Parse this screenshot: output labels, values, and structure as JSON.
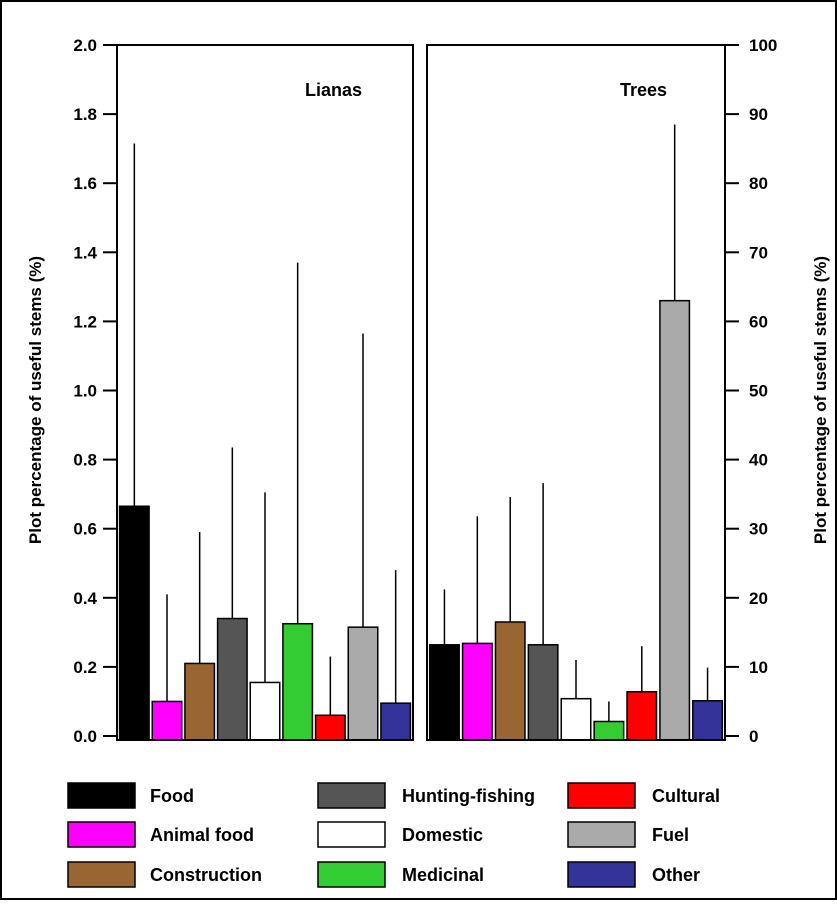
{
  "chart_data": {
    "type": "bar",
    "categories": [
      "Food",
      "Animal food",
      "Construction",
      "Hunting-fishing",
      "Domestic",
      "Medicinal",
      "Cultural",
      "Fuel",
      "Other"
    ],
    "colors": [
      "#000000",
      "#ff00ff",
      "#996633",
      "#555555",
      "#ffffff",
      "#33cc33",
      "#ff0000",
      "#aaaaaa",
      "#333399"
    ],
    "panels": [
      {
        "title": "Lianas",
        "axis": "left",
        "values": [
          0.665,
          0.1,
          0.21,
          0.34,
          0.155,
          0.325,
          0.06,
          0.315,
          0.095
        ],
        "error_upper": [
          1.715,
          0.41,
          0.59,
          0.835,
          0.705,
          1.37,
          0.23,
          1.165,
          0.48
        ]
      },
      {
        "title": "Trees",
        "axis": "right",
        "values": [
          13.2,
          13.4,
          16.5,
          13.2,
          5.4,
          2.1,
          6.4,
          63.0,
          5.1
        ],
        "error_upper": [
          21.2,
          31.8,
          34.6,
          36.6,
          11.0,
          5.0,
          13.0,
          88.5,
          9.9
        ]
      }
    ],
    "ylabel_left": "Plot percentage of useful stems (%)",
    "ylabel_right": "Plot percentage of useful stems (%)",
    "left_axis": {
      "ylim": [
        0,
        2.0
      ],
      "ticks": [
        "0.0",
        "0.2",
        "0.4",
        "0.6",
        "0.8",
        "1.0",
        "1.2",
        "1.4",
        "1.6",
        "1.8",
        "2.0"
      ]
    },
    "right_axis": {
      "ylim": [
        0,
        100
      ],
      "ticks": [
        "0",
        "10",
        "20",
        "30",
        "40",
        "50",
        "60",
        "70",
        "80",
        "90",
        "100"
      ]
    },
    "legend": {
      "placement": "bottom",
      "rows": [
        [
          "Food",
          "Hunting-fishing",
          "Cultural"
        ],
        [
          "Animal food",
          "Domestic",
          "Fuel"
        ],
        [
          "Construction",
          "Medicinal",
          "Other"
        ]
      ]
    },
    "grid": false
  }
}
